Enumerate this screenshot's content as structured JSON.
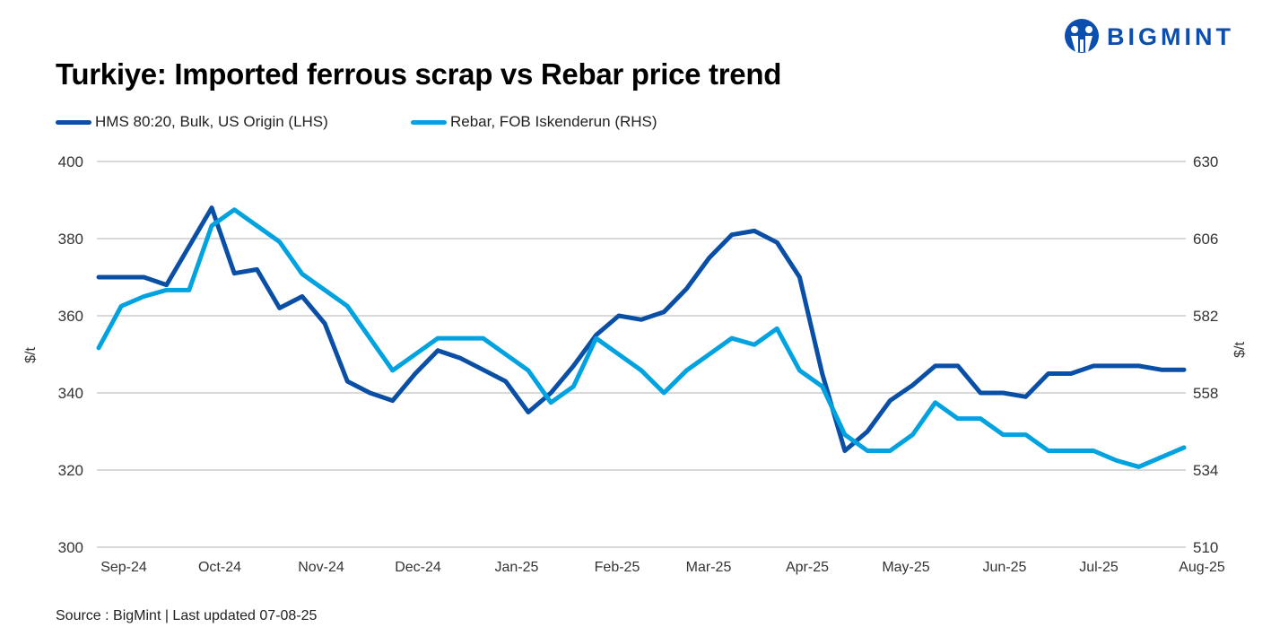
{
  "brand": {
    "name": "BIGMINT",
    "color": "#0a4fb0"
  },
  "chart_data": {
    "type": "line",
    "title": "Turkiye: Imported ferrous scrap vs Rebar price trend",
    "ylabel_left": "$/t",
    "ylabel_right": "$/t",
    "ylim_left": [
      300,
      400
    ],
    "ylim_right": [
      510,
      630
    ],
    "yticks_left": [
      300,
      320,
      340,
      360,
      380,
      400
    ],
    "yticks_right": [
      510,
      534,
      558,
      582,
      606,
      630
    ],
    "x_tick_labels": [
      "Sep-24",
      "Oct-24",
      "Nov-24",
      "Dec-24",
      "Jan-25",
      "Feb-25",
      "Mar-25",
      "Apr-25",
      "May-25",
      "Jun-25",
      "Jul-25",
      "Aug-25"
    ],
    "grid": true,
    "legend_placement": "top-left",
    "series": [
      {
        "name": "HMS 80:20, Bulk, US Origin (LHS)",
        "axis": "left",
        "color": "#0a4fa6",
        "values": [
          370,
          370,
          370,
          368,
          378,
          388,
          371,
          372,
          362,
          365,
          358,
          343,
          340,
          338,
          345,
          351,
          349,
          346,
          343,
          335,
          340,
          347,
          355,
          360,
          359,
          361,
          367,
          375,
          381,
          382,
          379,
          370,
          345,
          325,
          330,
          338,
          342,
          347,
          347,
          340,
          340,
          339,
          345,
          345,
          347,
          347,
          347,
          346,
          346
        ]
      },
      {
        "name": "Rebar, FOB Iskenderun (RHS)",
        "axis": "right",
        "color": "#00a3e0",
        "values": [
          572,
          585,
          588,
          590,
          590,
          610,
          615,
          610,
          605,
          595,
          590,
          585,
          575,
          565,
          570,
          575,
          575,
          575,
          570,
          565,
          555,
          560,
          575,
          570,
          565,
          558,
          565,
          570,
          575,
          573,
          578,
          565,
          560,
          545,
          540,
          540,
          545,
          555,
          550,
          550,
          545,
          545,
          540,
          540,
          540,
          537,
          535,
          538,
          541
        ]
      }
    ]
  },
  "source": "Source : BigMint | Last updated 07-08-25"
}
